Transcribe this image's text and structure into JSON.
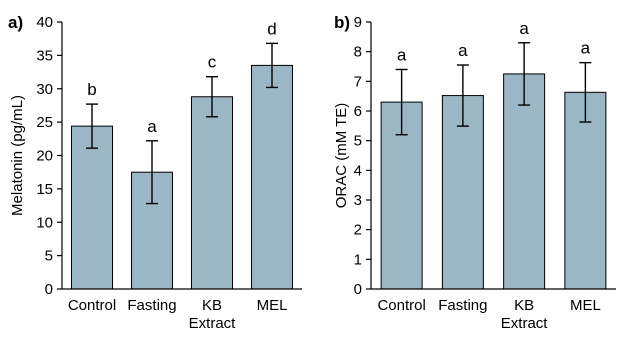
{
  "chart_data": [
    {
      "type": "bar",
      "panel_label": "a)",
      "ylabel": "Melatonin (pg/mL)",
      "ylim": [
        0,
        40
      ],
      "yticks": [
        "0",
        "5",
        "10",
        "15",
        "20",
        "25",
        "30",
        "35",
        "40"
      ],
      "categories": [
        [
          "Control"
        ],
        [
          "Fasting"
        ],
        [
          "KB",
          "Extract"
        ],
        [
          "MEL"
        ]
      ],
      "values": [
        24.4,
        17.5,
        28.8,
        33.5
      ],
      "errors": [
        3.3,
        4.7,
        3.0,
        3.3
      ],
      "significance": [
        "b",
        "a",
        "c",
        "d"
      ],
      "bar_color": "#9bb7c5",
      "grid": false
    },
    {
      "type": "bar",
      "panel_label": "b)",
      "ylabel": "ORAC (mM TE)",
      "ylim": [
        0,
        9
      ],
      "yticks": [
        "0",
        "1",
        "2",
        "3",
        "4",
        "5",
        "6",
        "7",
        "8",
        "9"
      ],
      "categories": [
        [
          "Control"
        ],
        [
          "Fasting"
        ],
        [
          "KB",
          "Extract"
        ],
        [
          "MEL"
        ]
      ],
      "values": [
        6.3,
        6.52,
        7.25,
        6.63
      ],
      "errors": [
        1.1,
        1.03,
        1.05,
        1.0
      ],
      "significance": [
        "a",
        "a",
        "a",
        "a"
      ],
      "bar_color": "#9bb7c5",
      "grid": false
    }
  ]
}
